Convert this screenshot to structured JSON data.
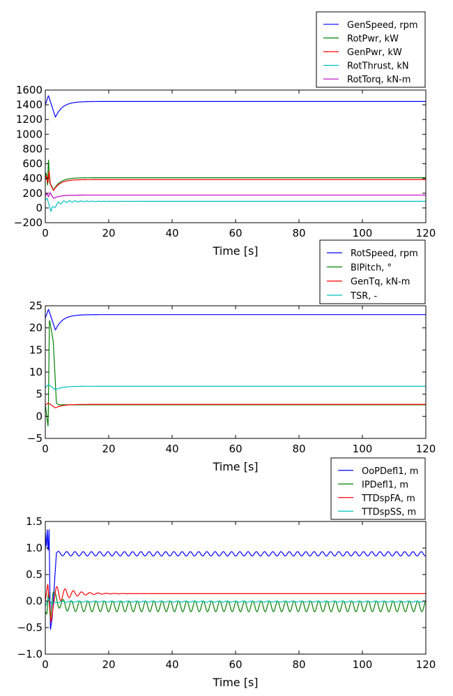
{
  "chart_data": [
    {
      "type": "line",
      "xlabel": "Time [s]",
      "xlim": [
        0,
        120
      ],
      "ylim": [
        -200,
        1600
      ],
      "xticks": [
        "0",
        "20",
        "40",
        "60",
        "80",
        "100",
        "120"
      ],
      "yticks": [
        "−200",
        "0",
        "200",
        "400",
        "600",
        "800",
        "1000",
        "1200",
        "1400",
        "1600"
      ],
      "legend_position": "top-right-above",
      "series": [
        {
          "name": "GenSpeed, rpm",
          "color": "#0000ff",
          "pattern": "settle",
          "start": 1400,
          "peak": 1525,
          "dip": 1230,
          "steady": 1445,
          "osc_amp": 0,
          "osc_period": 3.0,
          "osc_decay": 1
        },
        {
          "name": "RotPwr, kW",
          "color": "#008000",
          "pattern": "spiky",
          "start": 400,
          "spikes": [
            [
              0.3,
              480
            ],
            [
              0.7,
              300
            ],
            [
              1.0,
              680
            ],
            [
              1.4,
              330
            ],
            [
              2.0,
              300
            ]
          ],
          "dip": 240,
          "steady": 410,
          "osc_amp": 0,
          "osc_period": 3.0,
          "osc_decay": 1
        },
        {
          "name": "GenPwr, kW",
          "color": "#ff0000",
          "pattern": "spiky",
          "start": 380,
          "spikes": [
            [
              0.4,
              440
            ],
            [
              0.8,
              330
            ],
            [
              1.2,
              500
            ],
            [
              1.6,
              320
            ]
          ],
          "dip": 235,
          "steady": 385,
          "osc_amp": 0,
          "osc_period": 3.0,
          "osc_decay": 1
        },
        {
          "name": "RotThrust, kN",
          "color": "#00bfbf",
          "pattern": "osc",
          "start": 110,
          "spikes": [
            [
              0.6,
              130
            ],
            [
              1.8,
              -50
            ]
          ],
          "steady": 90,
          "osc_amp": 30,
          "osc_period": 1.8,
          "osc_decay": 6
        },
        {
          "name": "RotTorq, kN-m",
          "color": "#bf00bf",
          "pattern": "spiky",
          "start": 160,
          "spikes": [
            [
              0.5,
              200
            ],
            [
              1.0,
              150
            ],
            [
              1.5,
              210
            ]
          ],
          "dip": 130,
          "steady": 175,
          "osc_amp": 0,
          "osc_period": 3.0,
          "osc_decay": 1
        }
      ]
    },
    {
      "type": "line",
      "xlabel": "Time [s]",
      "xlim": [
        0,
        120
      ],
      "ylim": [
        -5,
        25
      ],
      "xticks": [
        "0",
        "20",
        "40",
        "60",
        "80",
        "100",
        "120"
      ],
      "yticks": [
        "−5",
        "0",
        "5",
        "10",
        "15",
        "20",
        "25"
      ],
      "legend_position": "top-right-above",
      "series": [
        {
          "name": "RotSpeed, rpm",
          "color": "#0000ff",
          "pattern": "settle",
          "start": 22.2,
          "peak": 24.2,
          "dip": 19.5,
          "steady": 23.0,
          "osc_amp": 0,
          "osc_period": 3.0,
          "osc_decay": 1
        },
        {
          "name": "BlPitch, °",
          "color": "#008000",
          "pattern": "pitch",
          "start": 2.7,
          "spikes": [
            [
              0.9,
              -2.5
            ],
            [
              1.3,
              22
            ],
            [
              2.5,
              17
            ],
            [
              3.5,
              3.0
            ]
          ],
          "steady": 2.6,
          "osc_amp": 0,
          "osc_period": 3.0,
          "osc_decay": 1
        },
        {
          "name": "GenTq, kN-m",
          "color": "#ff0000",
          "pattern": "settle",
          "start": 2.6,
          "peak": 3.0,
          "dip": 1.9,
          "steady": 2.7,
          "osc_amp": 0,
          "osc_period": 3.0,
          "osc_decay": 1
        },
        {
          "name": "TSR, -",
          "color": "#00bfbf",
          "pattern": "settle",
          "start": 6.5,
          "peak": 7.2,
          "dip": 6.0,
          "steady": 6.8,
          "osc_amp": 0,
          "osc_period": 3.0,
          "osc_decay": 1
        }
      ]
    },
    {
      "type": "line",
      "xlabel": "Time [s]",
      "xlim": [
        0,
        120
      ],
      "ylim": [
        -1.0,
        1.5
      ],
      "xticks": [
        "0",
        "20",
        "40",
        "60",
        "80",
        "100",
        "120"
      ],
      "yticks": [
        "−1.0",
        "−0.5",
        "0.0",
        "0.5",
        "1.0",
        "1.5"
      ],
      "legend_position": "top-right-above",
      "series": [
        {
          "name": "OoPDefl1, m",
          "color": "#0000ff",
          "pattern": "osc",
          "start": 1.3,
          "spikes": [
            [
              0.3,
              1.0
            ],
            [
              0.6,
              1.35
            ],
            [
              0.9,
              0.9
            ],
            [
              1.2,
              1.35
            ],
            [
              1.6,
              -0.55
            ],
            [
              2.2,
              -0.3
            ],
            [
              3.5,
              0.9
            ]
          ],
          "steady": 0.89,
          "osc_amp": 0.04,
          "osc_period": 2.6,
          "osc_decay": 0
        },
        {
          "name": "IPDefl1, m",
          "color": "#008000",
          "pattern": "osc",
          "start": -0.2,
          "spikes": [
            [
              0.5,
              -0.25
            ],
            [
              1.0,
              0.2
            ],
            [
              1.6,
              -0.35
            ],
            [
              2.4,
              0.15
            ]
          ],
          "steady": -0.1,
          "osc_amp": 0.1,
          "osc_period": 2.6,
          "osc_decay": 0
        },
        {
          "name": "TTDspFA, m",
          "color": "#ff0000",
          "pattern": "osc",
          "start": 0.0,
          "spikes": [
            [
              0.8,
              0.33
            ],
            [
              1.8,
              -0.4
            ],
            [
              3.0,
              0.1
            ]
          ],
          "steady": 0.14,
          "osc_amp": 0.18,
          "osc_period": 2.6,
          "osc_decay": 5
        },
        {
          "name": "TTDspSS, m",
          "color": "#00bfbf",
          "pattern": "osc",
          "start": -0.1,
          "spikes": [
            [
              1.0,
              0.05
            ],
            [
              2.0,
              -0.05
            ]
          ],
          "steady": -0.01,
          "osc_amp": 0.01,
          "osc_period": 2.6,
          "osc_decay": 0
        }
      ]
    }
  ]
}
